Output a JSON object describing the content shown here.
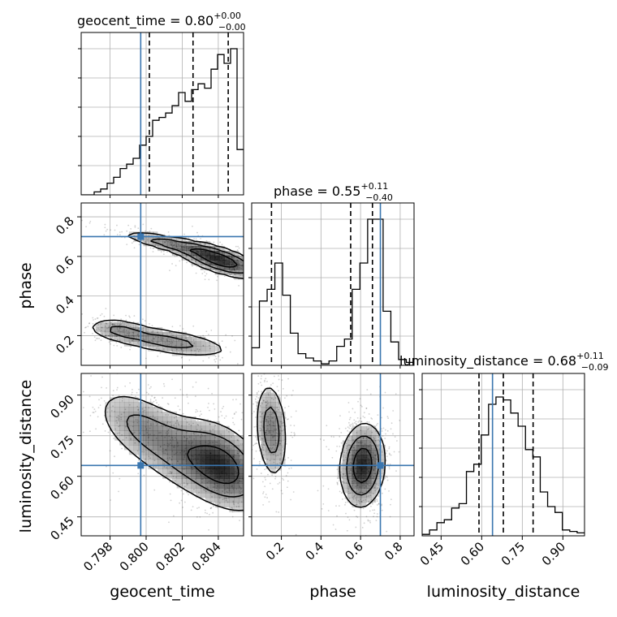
{
  "chart_data": {
    "type": "corner",
    "colors": {
      "truth": "#3a76af",
      "line": "#000000",
      "grid": "#b0b0b0",
      "density": "#000000"
    },
    "parameters": [
      {
        "name": "geocent_time",
        "title_prefix": "geocent_time = ",
        "median": "0.80",
        "plus": "+0.00",
        "minus": "−0.00",
        "range": [
          0.7964,
          0.8054
        ],
        "ticks": [
          0.798,
          0.8,
          0.802,
          0.804
        ],
        "tick_labels": [
          "0.798",
          "0.800",
          "0.802",
          "0.804"
        ],
        "truth": 0.7997,
        "quantiles": [
          0.80018,
          0.8026,
          0.80455
        ],
        "hist_bins": [
          0,
          0,
          0.02,
          0.04,
          0.08,
          0.12,
          0.18,
          0.21,
          0.25,
          0.34,
          0.4,
          0.51,
          0.53,
          0.56,
          0.61,
          0.7,
          0.64,
          0.72,
          0.76,
          0.73,
          0.86,
          0.96,
          0.9,
          1.0,
          0.31
        ],
        "axis_label": "geocent_time"
      },
      {
        "name": "phase",
        "title_prefix": "phase = ",
        "median": "0.55",
        "plus": "+0.11",
        "minus": "−0.40",
        "range": [
          0.05,
          0.87
        ],
        "ticks": [
          0.2,
          0.4,
          0.6,
          0.8
        ],
        "tick_labels": [
          "0.2",
          "0.4",
          "0.6",
          "0.8"
        ],
        "truth": 0.7,
        "quantiles": [
          0.15,
          0.55,
          0.66
        ],
        "hist_bins": [
          0.12,
          0.44,
          0.52,
          0.7,
          0.48,
          0.22,
          0.08,
          0.05,
          0.03,
          0.01,
          0.03,
          0.13,
          0.18,
          0.52,
          0.7,
          1.0,
          1.0,
          0.37,
          0.16,
          0.04,
          0.02
        ],
        "axis_label": "phase"
      },
      {
        "name": "luminosity_distance",
        "title_prefix": "luminosity_distance = ",
        "median": "0.68",
        "plus": "+0.11",
        "minus": "−0.09",
        "range": [
          0.38,
          0.98
        ],
        "ticks": [
          0.45,
          0.6,
          0.75,
          0.9
        ],
        "tick_labels": [
          "0.45",
          "0.60",
          "0.75",
          "0.90"
        ],
        "truth": 0.64,
        "quantiles": [
          0.59,
          0.68,
          0.79
        ],
        "hist_bins": [
          0.01,
          0.04,
          0.09,
          0.11,
          0.19,
          0.22,
          0.44,
          0.49,
          0.69,
          0.9,
          0.95,
          0.93,
          0.84,
          0.75,
          0.59,
          0.54,
          0.3,
          0.2,
          0.16,
          0.04,
          0.03,
          0.02
        ],
        "axis_label": "luminosity_distance"
      }
    ],
    "hist_y_ticks": [
      0.2,
      0.4,
      0.6,
      0.8,
      1.0
    ],
    "density_2d": {
      "phase_vs_geocent_time": {
        "blobs": [
          {
            "x": 0.8041,
            "y": 0.58,
            "sx": 0.0012,
            "sy": 0.045,
            "w": 1.0,
            "rho": -0.7
          },
          {
            "x": 0.8015,
            "y": 0.66,
            "sx": 0.0015,
            "sy": 0.035,
            "w": 0.55,
            "rho": -0.85
          },
          {
            "x": 0.8012,
            "y": 0.17,
            "sx": 0.0018,
            "sy": 0.04,
            "w": 0.5,
            "rho": -0.6
          },
          {
            "x": 0.7985,
            "y": 0.23,
            "sx": 0.0009,
            "sy": 0.03,
            "w": 0.35,
            "rho": -0.3
          }
        ],
        "levels": [
          0.12,
          0.35,
          0.7
        ]
      },
      "luminosity_distance_vs_geocent_time": {
        "blobs": [
          {
            "x": 0.8043,
            "y": 0.64,
            "sx": 0.0012,
            "sy": 0.08,
            "w": 1.0,
            "rho": -0.4
          },
          {
            "x": 0.8022,
            "y": 0.68,
            "sx": 0.0018,
            "sy": 0.09,
            "w": 0.7,
            "rho": -0.6
          },
          {
            "x": 0.7995,
            "y": 0.79,
            "sx": 0.0012,
            "sy": 0.07,
            "w": 0.4,
            "rho": -0.5
          }
        ],
        "levels": [
          0.12,
          0.35,
          0.7
        ]
      },
      "luminosity_distance_vs_phase": {
        "blobs": [
          {
            "x": 0.61,
            "y": 0.64,
            "sx": 0.055,
            "sy": 0.075,
            "w": 1.0,
            "rho": 0.1
          },
          {
            "x": 0.15,
            "y": 0.77,
            "sx": 0.04,
            "sy": 0.09,
            "w": 0.55,
            "rho": -0.2
          }
        ],
        "levels": [
          0.12,
          0.35,
          0.7
        ]
      }
    }
  }
}
